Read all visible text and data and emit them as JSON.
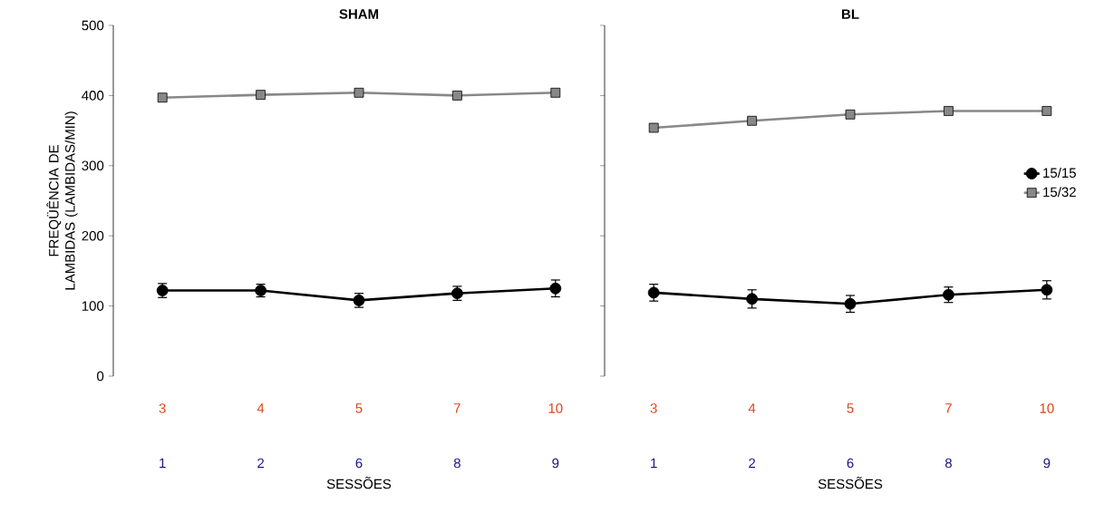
{
  "chart_data": [
    {
      "type": "line",
      "title": "SHAM",
      "xlabel": "SESSÕES",
      "ylabel": "FREQÜÊNCIA DE LAMBIDAS (LAMBIDAS/MIN)",
      "categories": [
        "3",
        "4",
        "5",
        "7",
        "10"
      ],
      "ylim": [
        0,
        500
      ],
      "yticks": [
        0,
        100,
        200,
        300,
        400,
        500
      ],
      "grid": false,
      "annotations": [
        "1",
        "2",
        "6",
        "8",
        "9"
      ],
      "series": [
        {
          "color": "#000000",
          "marker": "circle",
          "values": [
            122,
            122,
            108,
            118,
            125
          ],
          "errors": [
            10,
            9,
            10,
            10,
            12
          ]
        },
        {
          "color": "#888888",
          "marker": "square",
          "values": [
            397,
            401,
            404,
            400,
            404
          ]
        }
      ]
    },
    {
      "type": "line",
      "title": "BL",
      "xlabel": "SESSÕES",
      "categories": [
        "3",
        "4",
        "5",
        "7",
        "10"
      ],
      "ylim": [
        0,
        500
      ],
      "yticks": [
        0,
        100,
        200,
        300,
        400,
        500
      ],
      "grid": false,
      "tick_labels": "x",
      "legend": "right",
      "annotations": [
        "1",
        "2",
        "6",
        "8",
        "9"
      ],
      "series": [
        {
          "name": "15/15",
          "color": "#000000",
          "marker": "circle",
          "values": [
            119,
            110,
            103,
            116,
            123
          ],
          "errors": [
            12,
            13,
            12,
            11,
            13
          ]
        },
        {
          "name": "15/32",
          "color": "#888888",
          "marker": "square",
          "values": [
            354,
            364,
            373,
            378,
            378
          ]
        }
      ]
    }
  ]
}
